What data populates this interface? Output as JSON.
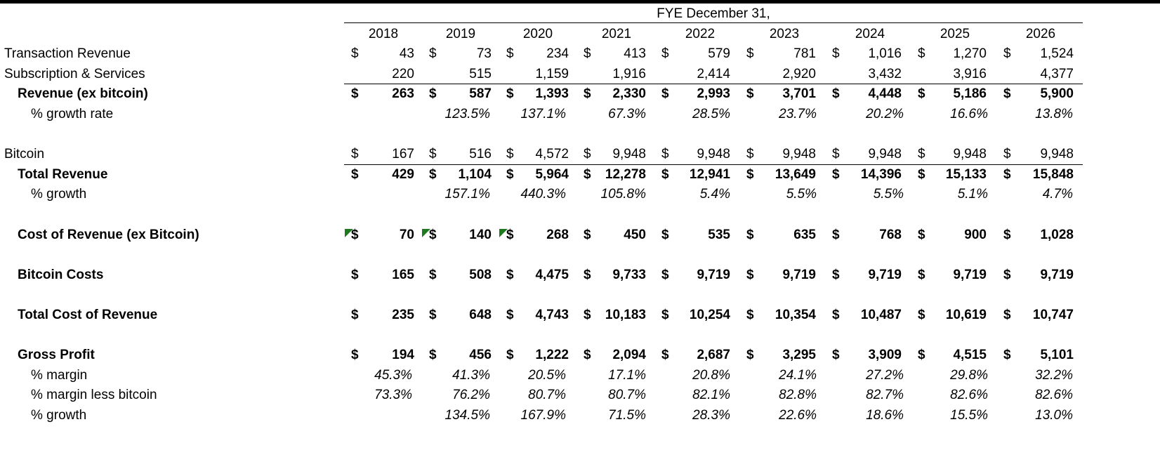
{
  "header": {
    "title": "FYE December 31,",
    "years": [
      "2018",
      "2019",
      "2020",
      "2021",
      "2022",
      "2023",
      "2024",
      "2025",
      "2026"
    ]
  },
  "currency": "$",
  "rows": [
    {
      "id": "transaction",
      "label": "Transaction Revenue",
      "values": [
        "43",
        "73",
        "234",
        "413",
        "579",
        "781",
        "1,016",
        "1,270",
        "1,524"
      ],
      "dollar": true
    },
    {
      "id": "subscription",
      "label": "Subscription & Services",
      "values": [
        "220",
        "515",
        "1,159",
        "1,916",
        "2,414",
        "2,920",
        "3,432",
        "3,916",
        "4,377"
      ],
      "dollar": false
    },
    {
      "id": "revenue_ex",
      "label": "Revenue (ex bitcoin)",
      "values": [
        "263",
        "587",
        "1,393",
        "2,330",
        "2,993",
        "3,701",
        "4,448",
        "5,186",
        "5,900"
      ],
      "dollar": true
    },
    {
      "id": "growth_rate",
      "label": "% growth rate",
      "values": [
        "",
        "123.5%",
        "137.1%",
        "67.3%",
        "28.5%",
        "23.7%",
        "20.2%",
        "16.6%",
        "13.8%"
      ]
    },
    {
      "id": "bitcoin",
      "label": "Bitcoin",
      "values": [
        "167",
        "516",
        "4,572",
        "9,948",
        "9,948",
        "9,948",
        "9,948",
        "9,948",
        "9,948"
      ],
      "dollar": true
    },
    {
      "id": "total_revenue",
      "label": "Total Revenue",
      "values": [
        "429",
        "1,104",
        "5,964",
        "12,278",
        "12,941",
        "13,649",
        "14,396",
        "15,133",
        "15,848"
      ],
      "dollar": true
    },
    {
      "id": "growth_total",
      "label": "% growth",
      "values": [
        "",
        "157.1%",
        "440.3%",
        "105.8%",
        "5.4%",
        "5.5%",
        "5.5%",
        "5.1%",
        "4.7%"
      ]
    },
    {
      "id": "cost_ex",
      "label": "Cost of Revenue (ex Bitcoin)",
      "values": [
        "70",
        "140",
        "268",
        "450",
        "535",
        "635",
        "768",
        "900",
        "1,028"
      ],
      "dollar": true
    },
    {
      "id": "bitcoin_costs",
      "label": "Bitcoin Costs",
      "values": [
        "165",
        "508",
        "4,475",
        "9,733",
        "9,719",
        "9,719",
        "9,719",
        "9,719",
        "9,719"
      ],
      "dollar": true
    },
    {
      "id": "total_cost",
      "label": "Total Cost of Revenue",
      "values": [
        "235",
        "648",
        "4,743",
        "10,183",
        "10,254",
        "10,354",
        "10,487",
        "10,619",
        "10,747"
      ],
      "dollar": true
    },
    {
      "id": "gross_profit",
      "label": "Gross Profit",
      "values": [
        "194",
        "456",
        "1,222",
        "2,094",
        "2,687",
        "3,295",
        "3,909",
        "4,515",
        "5,101"
      ],
      "dollar": true
    },
    {
      "id": "margin",
      "label": "% margin",
      "values": [
        "45.3%",
        "41.3%",
        "20.5%",
        "17.1%",
        "20.8%",
        "24.1%",
        "27.2%",
        "29.8%",
        "32.2%"
      ]
    },
    {
      "id": "margin_less_btc",
      "label": "% margin less bitcoin",
      "values": [
        "73.3%",
        "76.2%",
        "80.7%",
        "80.7%",
        "82.1%",
        "82.8%",
        "82.7%",
        "82.6%",
        "82.6%"
      ]
    },
    {
      "id": "growth_gp",
      "label": "% growth",
      "values": [
        "",
        "134.5%",
        "167.9%",
        "71.5%",
        "28.3%",
        "22.6%",
        "18.6%",
        "15.5%",
        "13.0%"
      ]
    }
  ],
  "colors": {
    "comment_marker": "#1f7a1f"
  }
}
